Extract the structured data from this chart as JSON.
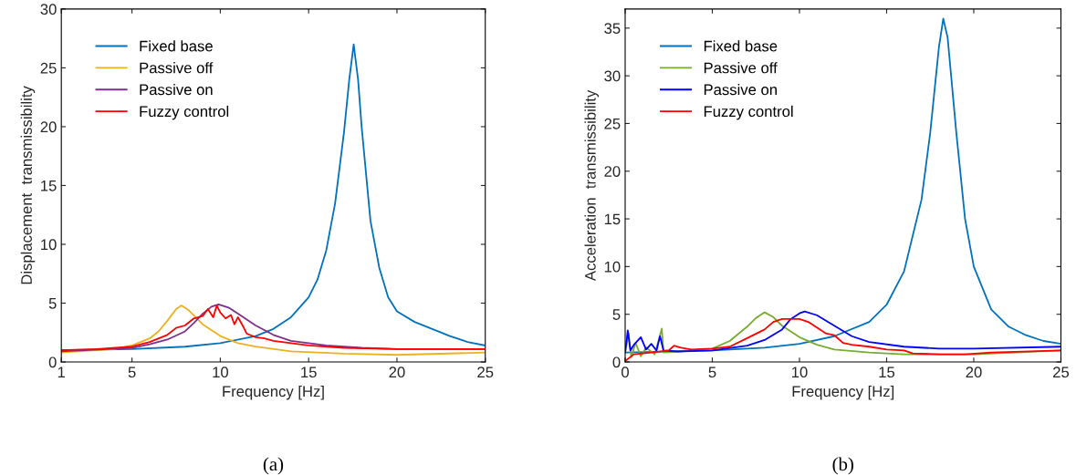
{
  "chart_data": [
    {
      "type": "line",
      "xlabel": "Frequency [Hz]",
      "ylabel": "Displacement  transmissibility",
      "xlim": [
        1,
        25
      ],
      "xticks": [
        1,
        5,
        10,
        15,
        20,
        25
      ],
      "ylim": [
        0,
        30
      ],
      "yticks": [
        0,
        5,
        10,
        15,
        20,
        25,
        30
      ],
      "legend": "top left",
      "grid": false,
      "annotations": [
        "(a)"
      ],
      "series": [
        {
          "name": "Fixed base",
          "color": "#0072bd",
          "x": [
            1,
            5,
            8,
            10,
            12,
            13,
            14,
            15,
            15.5,
            16,
            16.5,
            17,
            17.3,
            17.55,
            17.8,
            18,
            18.5,
            19,
            19.5,
            20,
            21,
            22,
            23,
            24,
            25
          ],
          "values": [
            1.0,
            1.1,
            1.3,
            1.6,
            2.2,
            2.8,
            3.8,
            5.5,
            7,
            9.5,
            13.5,
            19.5,
            24,
            27,
            24,
            20,
            12,
            8,
            5.5,
            4.3,
            3.4,
            2.8,
            2.2,
            1.7,
            1.4
          ]
        },
        {
          "name": "Passive off",
          "color": "#edb120",
          "x": [
            1,
            4,
            5,
            6,
            6.5,
            7,
            7.5,
            7.8,
            8.2,
            9,
            10,
            11,
            12,
            14,
            17,
            20,
            25
          ],
          "values": [
            0.8,
            1.1,
            1.4,
            2.0,
            2.6,
            3.5,
            4.5,
            4.8,
            4.4,
            3.2,
            2.2,
            1.6,
            1.3,
            0.9,
            0.7,
            0.6,
            0.8
          ]
        },
        {
          "name": "Passive on",
          "color": "#7e2f8e",
          "x": [
            1,
            5,
            6,
            7,
            8,
            8.5,
            9,
            9.5,
            9.9,
            10.5,
            11,
            12,
            13,
            14,
            16,
            18,
            20,
            25
          ],
          "values": [
            0.9,
            1.2,
            1.5,
            1.9,
            2.6,
            3.3,
            4.1,
            4.7,
            4.9,
            4.6,
            4.1,
            3.1,
            2.3,
            1.8,
            1.4,
            1.2,
            1.1,
            1.1
          ]
        },
        {
          "name": "Fuzzy control",
          "color": "#ff0000",
          "x": [
            1,
            3,
            5,
            6,
            7,
            7.5,
            8,
            8.5,
            9,
            9.3,
            9.6,
            9.8,
            10,
            10.3,
            10.6,
            10.8,
            11,
            11.3,
            11.5,
            12,
            12.5,
            13,
            14,
            15,
            17,
            20,
            25
          ],
          "values": [
            1.0,
            1.1,
            1.3,
            1.7,
            2.3,
            2.9,
            3.1,
            3.7,
            3.9,
            4.5,
            3.8,
            4.8,
            4.2,
            3.7,
            4.0,
            3.2,
            3.8,
            3.0,
            2.4,
            2.1,
            2.0,
            1.8,
            1.6,
            1.4,
            1.2,
            1.1,
            1.1
          ]
        }
      ]
    },
    {
      "type": "line",
      "xlabel": "Frequency [Hz]",
      "ylabel": "Acceleration  transmissibility",
      "xlim": [
        0,
        25
      ],
      "xticks": [
        0,
        5,
        10,
        15,
        20,
        25
      ],
      "ylim": [
        0,
        37
      ],
      "yticks": [
        0,
        5,
        10,
        15,
        20,
        25,
        30,
        35
      ],
      "legend": "top left",
      "grid": false,
      "annotations": [
        "(b)"
      ],
      "series": [
        {
          "name": "Fixed base",
          "color": "#0072bd",
          "x": [
            0,
            5,
            8,
            10,
            12,
            14,
            15,
            16,
            17,
            17.5,
            18,
            18.25,
            18.5,
            19,
            19.5,
            20,
            21,
            22,
            23,
            24,
            25
          ],
          "values": [
            1.0,
            1.2,
            1.5,
            1.9,
            2.7,
            4.2,
            6,
            9.5,
            17,
            24,
            33,
            36,
            34,
            24,
            15,
            10,
            5.5,
            3.7,
            2.8,
            2.2,
            1.9
          ]
        },
        {
          "name": "Passive off",
          "color": "#77ac30",
          "x": [
            0,
            0.2,
            0.35,
            0.6,
            0.9,
            1.2,
            1.7,
            2.1,
            2.2,
            3,
            5,
            6,
            7,
            7.5,
            8,
            8.5,
            9,
            10,
            11,
            12,
            14,
            16,
            20,
            25
          ],
          "values": [
            1.0,
            3.0,
            0.5,
            2.0,
            0.6,
            1.5,
            0.8,
            3.5,
            1.0,
            1.1,
            1.4,
            2.2,
            3.7,
            4.6,
            5.2,
            4.7,
            3.8,
            2.6,
            1.8,
            1.3,
            1.0,
            0.8,
            0.8,
            1.2
          ]
        },
        {
          "name": "Passive on",
          "color": "#0000ff",
          "x": [
            0,
            0.15,
            0.3,
            0.5,
            0.9,
            1.2,
            1.5,
            1.8,
            2.0,
            2.2,
            3,
            5,
            7,
            8,
            9,
            9.5,
            10,
            10.3,
            11,
            12,
            13,
            14,
            16,
            18,
            20,
            25
          ],
          "values": [
            1.0,
            3.3,
            1.2,
            1.8,
            2.6,
            1.3,
            1.9,
            1.2,
            2.7,
            1.2,
            1.1,
            1.2,
            1.7,
            2.3,
            3.4,
            4.5,
            5.1,
            5.3,
            4.9,
            3.8,
            2.7,
            2.1,
            1.6,
            1.4,
            1.4,
            1.6
          ]
        },
        {
          "name": "Fuzzy control",
          "color": "#ff0000",
          "x": [
            0,
            0.5,
            1.5,
            2.5,
            2.8,
            3.2,
            3.8,
            5,
            6,
            7,
            8,
            8.5,
            9,
            10,
            10.5,
            11,
            11.5,
            12,
            12.5,
            13,
            14,
            15,
            16,
            16.5,
            18,
            19.5,
            21,
            25
          ],
          "values": [
            0.1,
            0.8,
            1.0,
            1.2,
            1.7,
            1.5,
            1.3,
            1.4,
            1.6,
            2.5,
            3.4,
            4.2,
            4.5,
            4.5,
            4.2,
            3.6,
            3.0,
            2.8,
            2.0,
            1.8,
            1.6,
            1.3,
            1.2,
            0.9,
            0.8,
            0.8,
            1.0,
            1.2
          ]
        }
      ]
    }
  ]
}
